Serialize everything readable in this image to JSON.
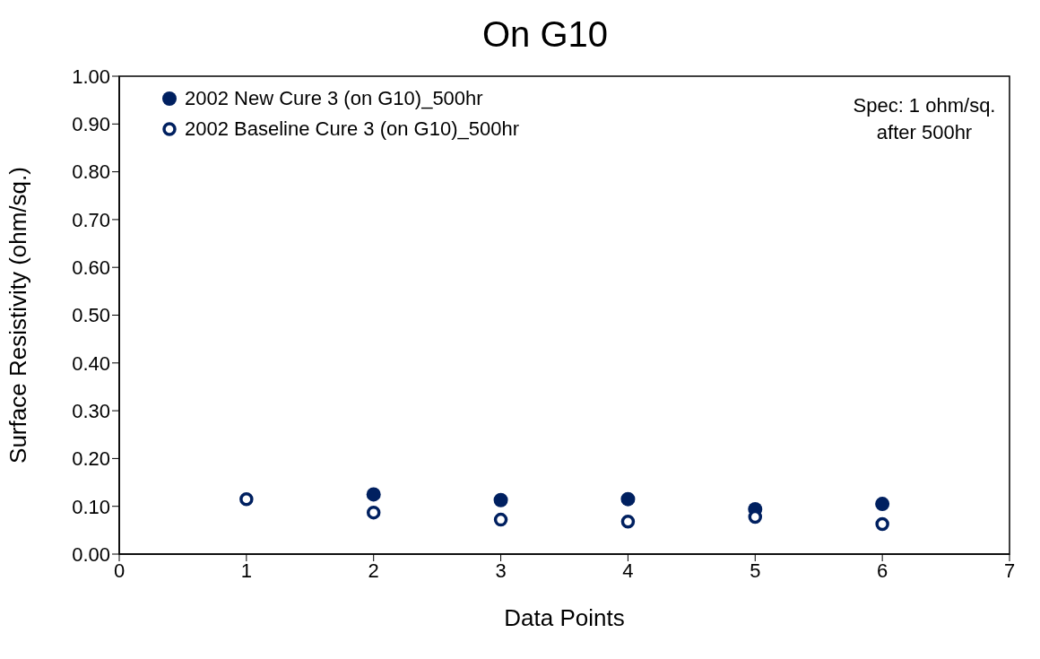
{
  "chart_data": {
    "type": "scatter",
    "title": "On G10",
    "xlabel": "Data Points",
    "ylabel": "Surface Resistivity (ohm/sq.)",
    "x": [
      1,
      2,
      3,
      4,
      5,
      6
    ],
    "series": [
      {
        "name": "2002 New Cure 3 (on G10)_500hr",
        "color": "#002060",
        "values": [
          null,
          0.125,
          0.113,
          0.115,
          0.094,
          0.105
        ]
      },
      {
        "name": "2002 Baseline Cure 3 (on G10)_500hr",
        "color": "#002060",
        "values": [
          0.115,
          0.087,
          0.072,
          0.068,
          0.078,
          0.063
        ]
      }
    ],
    "xlim": [
      0,
      7
    ],
    "xticks": [
      0,
      1,
      2,
      3,
      4,
      5,
      6,
      7
    ],
    "ylim": [
      0,
      1
    ],
    "yticks": [
      {
        "value": 0,
        "label": "0.00"
      },
      {
        "value": 0.1,
        "label": "0.10"
      },
      {
        "value": 0.2,
        "label": "0.20"
      },
      {
        "value": 0.3,
        "label": "0.30"
      },
      {
        "value": 0.4,
        "label": "0.40"
      },
      {
        "value": 0.5,
        "label": "0.50"
      },
      {
        "value": 0.6,
        "label": "0.60"
      },
      {
        "value": 0.7,
        "label": "0.70"
      },
      {
        "value": 0.8,
        "label": "0.80"
      },
      {
        "value": 0.9,
        "label": "0.90"
      },
      {
        "value": 1,
        "label": "1.00"
      }
    ],
    "annotations": [
      "Spec: 1 ohm/sq.\nafter 500hr"
    ],
    "legend": "top left",
    "grid": false,
    "marker": "circle"
  }
}
